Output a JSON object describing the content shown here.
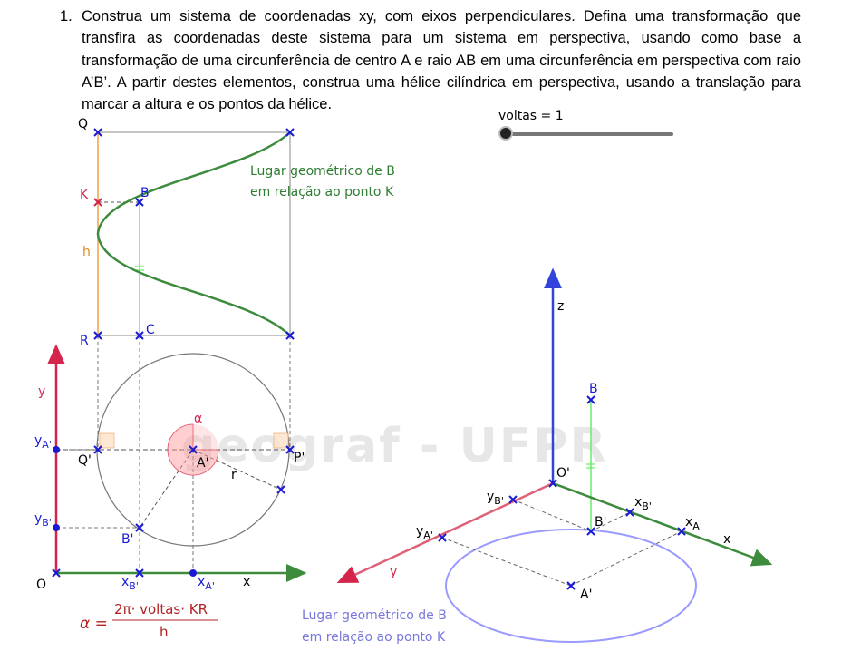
{
  "problem": {
    "number": "1.",
    "text": "Construa um sistema de coordenadas xy, com eixos perpendiculares. Defina uma transformação que transfira as coordenadas deste sistema para um sistema em perspectiva, usando como base a transformação de uma circunferência de centro A e raio AB em uma circunferência em perspectiva com raio A’B’. A partir destes elementos, construa uma hélice cilíndrica em perspectiva, usando a translação para marcar a altura e os pontos da hélice."
  },
  "slider": {
    "label": "voltas = 1",
    "value": 1
  },
  "watermark": "geograf - UFPR",
  "left_figure": {
    "points": {
      "Q": "Q",
      "K": "K",
      "B": "B",
      "h": "h",
      "R": "R",
      "C": "C",
      "y_axis": "y",
      "x_axis": "x",
      "O": "O",
      "yA_main": "y",
      "yA_sub": "A'",
      "yB_main": "y",
      "yB_sub": "B'",
      "Qp": "Q'",
      "Ap": "A'",
      "Pp": "P'",
      "Bp": "B'",
      "r": "r",
      "alpha": "α",
      "xB_main": "x",
      "xB_sub": "B'",
      "xA_main": "x",
      "xA_sub": "A'"
    },
    "locus_label_line1": "Lugar geométrico de B",
    "locus_label_line2": "em relação ao ponto K",
    "formula": {
      "lhs": "α =",
      "numerator": "2π· voltas· KR",
      "denominator": "h"
    }
  },
  "right_figure": {
    "points": {
      "z": "z",
      "B": "B",
      "Op": "O'",
      "yB_main": "y",
      "yB_sub": "B'",
      "xB_main": "x",
      "xB_sub": "B'",
      "Bp": "B'",
      "yA_main": "y",
      "yA_sub": "A'",
      "xA_main": "x",
      "xA_sub": "A'",
      "x_axis": "x",
      "y_axis": "y",
      "Ap": "A'"
    },
    "locus_label_line1": "Lugar geométrico de B",
    "locus_label_line2": "em relação ao ponto K"
  },
  "colors": {
    "x_axis": "#3d8b3d",
    "y_axis": "#d4264c",
    "z_axis": "#3344dd",
    "point_blue": "#1a1ad4",
    "point_red": "#d4264c",
    "helix": "#3d8b3d",
    "h_segment": "#f0a040",
    "bc_segment": "#66ee66",
    "ellipse": "#9a9aff",
    "formula": "#b22222",
    "locus_left": "#2e7d32",
    "locus_right": "#7777dd"
  }
}
